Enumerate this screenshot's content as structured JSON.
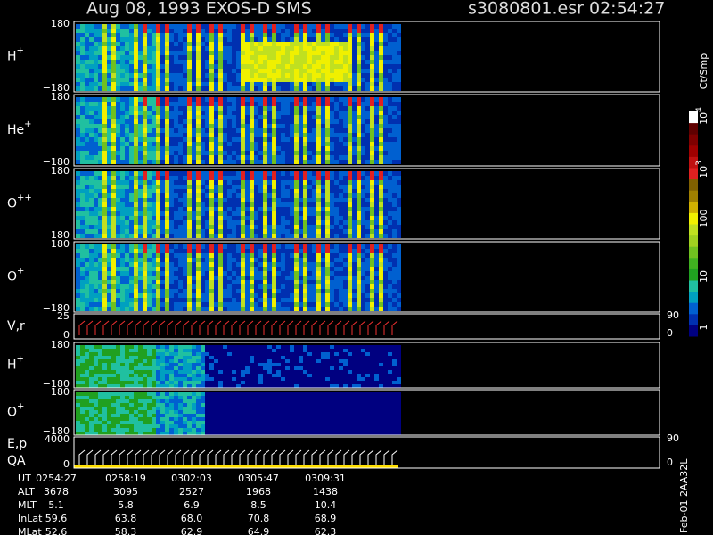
{
  "header": {
    "title": "Aug 08, 1993   EXOS-D SMS",
    "file": "s3080801.esr  02:54:27"
  },
  "panels": [
    {
      "label": "H",
      "sup": "+",
      "ticks": [
        "180",
        "−180"
      ]
    },
    {
      "label": "He",
      "sup": "+",
      "ticks": [
        "180",
        "−180"
      ]
    },
    {
      "label": "O",
      "sup": "++",
      "ticks": [
        "180",
        "−180"
      ]
    },
    {
      "label": "O",
      "sup": "+",
      "ticks": [
        "180",
        "−180"
      ]
    },
    {
      "label": "V,r",
      "ticks": [
        "25",
        "0"
      ],
      "right_ticks": [
        "90",
        "0"
      ]
    },
    {
      "label": "H",
      "sup": "+",
      "ticks": [
        "180",
        "−180"
      ]
    },
    {
      "label": "O",
      "sup": "+",
      "ticks": [
        "180",
        "−180"
      ]
    },
    {
      "label": "E,p",
      "label2": "QA",
      "ticks": [
        "4000",
        "0"
      ],
      "right_ticks": [
        "90",
        "0"
      ]
    }
  ],
  "colorbar": {
    "unit": "Ct/Smp",
    "labels": [
      {
        "base": "10",
        "exp": "4"
      },
      {
        "base": "10",
        "exp": "3"
      },
      {
        "base": "100"
      },
      {
        "base": "10"
      },
      {
        "base": "1"
      }
    ]
  },
  "ephemeris": {
    "rows": [
      {
        "label": "UT",
        "values": [
          "0254:27",
          "0258:19",
          "0302:03",
          "0305:47",
          "0309:31"
        ]
      },
      {
        "label": "ALT",
        "values": [
          "3678",
          "3095",
          "2527",
          "1968",
          "1438"
        ]
      },
      {
        "label": "MLT",
        "values": [
          "5.1",
          "5.8",
          "6.9",
          "8.5",
          "10.4"
        ]
      },
      {
        "label": "InLat",
        "values": [
          "59.6",
          "63.8",
          "68.0",
          "70.8",
          "68.9"
        ]
      },
      {
        "label": "MLat",
        "values": [
          "52.6",
          "58.3",
          "62.9",
          "64.9",
          "62.3"
        ]
      }
    ]
  },
  "footer_code": "Feb-01 2AA32L"
}
